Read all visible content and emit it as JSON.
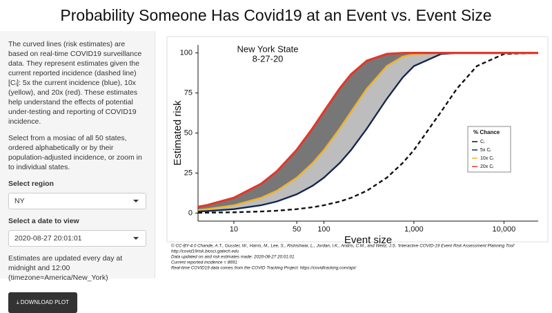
{
  "title": "Probability Someone Has Covid19 at an Event vs. Event Size",
  "sidebar": {
    "intro": "The curved lines (risk estimates) are based on real-time COVID19 surveillance data. They represent estimates given the current reported incidence (dashed line) [Cᵢ]: 5x the current incidence (blue), 10x (yellow), and 20x (red). These estimates help understand the effects of potential under-testing and reporting of COVID19 incidence.",
    "mosaic": "Select from a mosiac of all 50 states, ordered alphabetically or by their population-adjusted incidence, or zoom in to individual states.",
    "region_label": "Select region",
    "region_value": "NY",
    "date_label": "Select a date to view",
    "date_value": "2020-08-27 20:01:01",
    "update_note": "Estimates are updated every day at midnight and 12:00 (timezone=America/New_York)",
    "download_button": "DOWNLOAD PLOT"
  },
  "chart_data": {
    "type": "line",
    "xlabel": "Event size",
    "ylabel": "Estimated risk",
    "annotations": [
      "New York State",
      "8-27-20"
    ],
    "legend_title": "% Chance",
    "legend": "right",
    "xscale": "log",
    "x": [
      4,
      5,
      10,
      20,
      30,
      50,
      75,
      100,
      150,
      200,
      300,
      500,
      750,
      1000,
      2000,
      3000,
      5000,
      10000,
      24000
    ],
    "series": [
      {
        "name": "Cᵢ",
        "color": "#111111",
        "linestyle": "dashed",
        "values": [
          0.2,
          0.25,
          0.5,
          1.0,
          1.49,
          2.47,
          3.68,
          4.88,
          7.23,
          9.52,
          13.93,
          22.12,
          31.27,
          39.35,
          63.21,
          77.69,
          91.79,
          99.33,
          100
        ]
      },
      {
        "name": "5x Cᵢ",
        "color": "#14284f",
        "values": [
          1.0,
          1.24,
          2.47,
          4.88,
          7.23,
          11.75,
          17.07,
          22.12,
          31.27,
          39.35,
          52.76,
          71.35,
          84.67,
          91.79,
          99.33,
          99.94,
          100,
          100,
          100
        ]
      },
      {
        "name": "10x Cᵢ",
        "color": "#f0b323",
        "values": [
          1.98,
          2.47,
          4.88,
          9.52,
          13.93,
          22.12,
          31.27,
          39.35,
          52.76,
          63.21,
          77.69,
          91.79,
          97.65,
          99.33,
          100,
          100,
          100,
          100,
          100
        ]
      },
      {
        "name": "20x Cᵢ",
        "color": "#e0392b",
        "values": [
          3.94,
          4.9,
          9.56,
          18.21,
          26.03,
          39.5,
          52.94,
          63.4,
          77.86,
          86.6,
          95.1,
          99.34,
          99.95,
          100,
          100,
          100,
          100,
          100,
          100
        ]
      }
    ],
    "band_colors": [
      "#bdbdbd",
      "#777777"
    ],
    "xlim": [
      4,
      24000
    ],
    "xticks": [
      10,
      50,
      100,
      {
        "value": 1000,
        "label": "1,000"
      },
      {
        "value": 10000,
        "label": "10,000"
      }
    ],
    "ylim": [
      -5,
      105
    ],
    "yticks": [
      0,
      25,
      50,
      75,
      100
    ],
    "grid": false,
    "footnotes": [
      "© CC-BY-4.0   Chande, A.T., Gussler, W., Harris, M., Lee, S., Rishishwar, L., Jordan, I.K., Andris, C.M., and Weitz, J.S. 'Interactive COVID-19 Event Risk Assessment Planning Tool'",
      "http://covid19risk.biosci.gatech.edu",
      "Data updated on and risk estimates made:  2020-08-27 20:01:01",
      "Current reported incidence = 8691",
      "Real-time COVID19 data comes from the COVID Tracking Project: https://covidtracking.com/api/"
    ]
  }
}
